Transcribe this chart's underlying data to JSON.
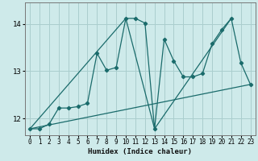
{
  "xlabel": "Humidex (Indice chaleur)",
  "ylabel": "",
  "bg_color": "#ceeaea",
  "grid_color": "#aacece",
  "line_color": "#1a6b6b",
  "xlim": [
    -0.5,
    23.5
  ],
  "ylim": [
    11.65,
    14.45
  ],
  "yticks": [
    12,
    13,
    14
  ],
  "xticks": [
    0,
    1,
    2,
    3,
    4,
    5,
    6,
    7,
    8,
    9,
    10,
    11,
    12,
    13,
    14,
    15,
    16,
    17,
    18,
    19,
    20,
    21,
    22,
    23
  ],
  "series1_x": [
    0,
    1,
    2,
    3,
    4,
    5,
    6,
    7,
    8,
    9,
    10,
    11,
    12,
    13,
    14,
    15,
    16,
    17,
    18,
    19,
    20,
    21,
    22,
    23
  ],
  "series1_y": [
    11.78,
    11.78,
    11.88,
    12.22,
    12.22,
    12.25,
    12.32,
    13.38,
    13.02,
    13.08,
    14.12,
    14.12,
    14.02,
    11.78,
    13.68,
    13.22,
    12.88,
    12.88,
    12.95,
    13.58,
    13.88,
    14.12,
    13.18,
    12.72
  ],
  "series2_x": [
    0,
    23
  ],
  "series2_y": [
    11.78,
    12.72
  ],
  "series3_x": [
    0,
    10,
    13,
    21
  ],
  "series3_y": [
    11.78,
    14.12,
    11.78,
    14.12
  ]
}
